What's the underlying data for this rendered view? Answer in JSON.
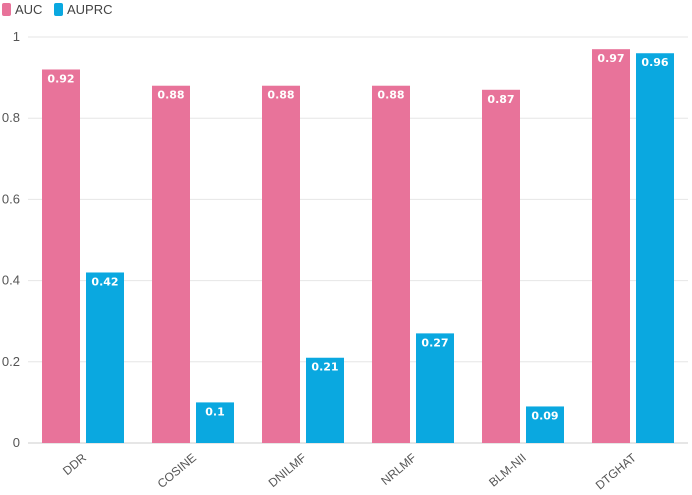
{
  "chart_data": {
    "type": "bar",
    "categories": [
      "DDR",
      "COSINE",
      "DNILMF",
      "NRLMF",
      "BLM-NII",
      "DTGHAT"
    ],
    "series": [
      {
        "name": "AUC",
        "color": "#e8739a",
        "values": [
          0.92,
          0.88,
          0.88,
          0.88,
          0.87,
          0.97
        ],
        "labels": [
          "0.92",
          "0.88",
          "0.88",
          "0.88",
          "0.87",
          "0.97"
        ]
      },
      {
        "name": "AUPRC",
        "color": "#0aa8e0",
        "values": [
          0.42,
          0.1,
          0.21,
          0.27,
          0.09,
          0.96
        ],
        "labels": [
          "0.42",
          "0.1",
          "0.21",
          "0.27",
          "0.09",
          "0.96"
        ]
      }
    ],
    "title": "",
    "xlabel": "",
    "ylabel": "",
    "ylim": [
      0,
      1
    ],
    "yticks": [
      0,
      0.2,
      0.4,
      0.6,
      0.8,
      1
    ],
    "ytick_labels": [
      "0",
      "0.2",
      "0.4",
      "0.6",
      "0.8",
      "1"
    ],
    "grid": true,
    "legend_position": "top-left",
    "data_labels": true
  }
}
